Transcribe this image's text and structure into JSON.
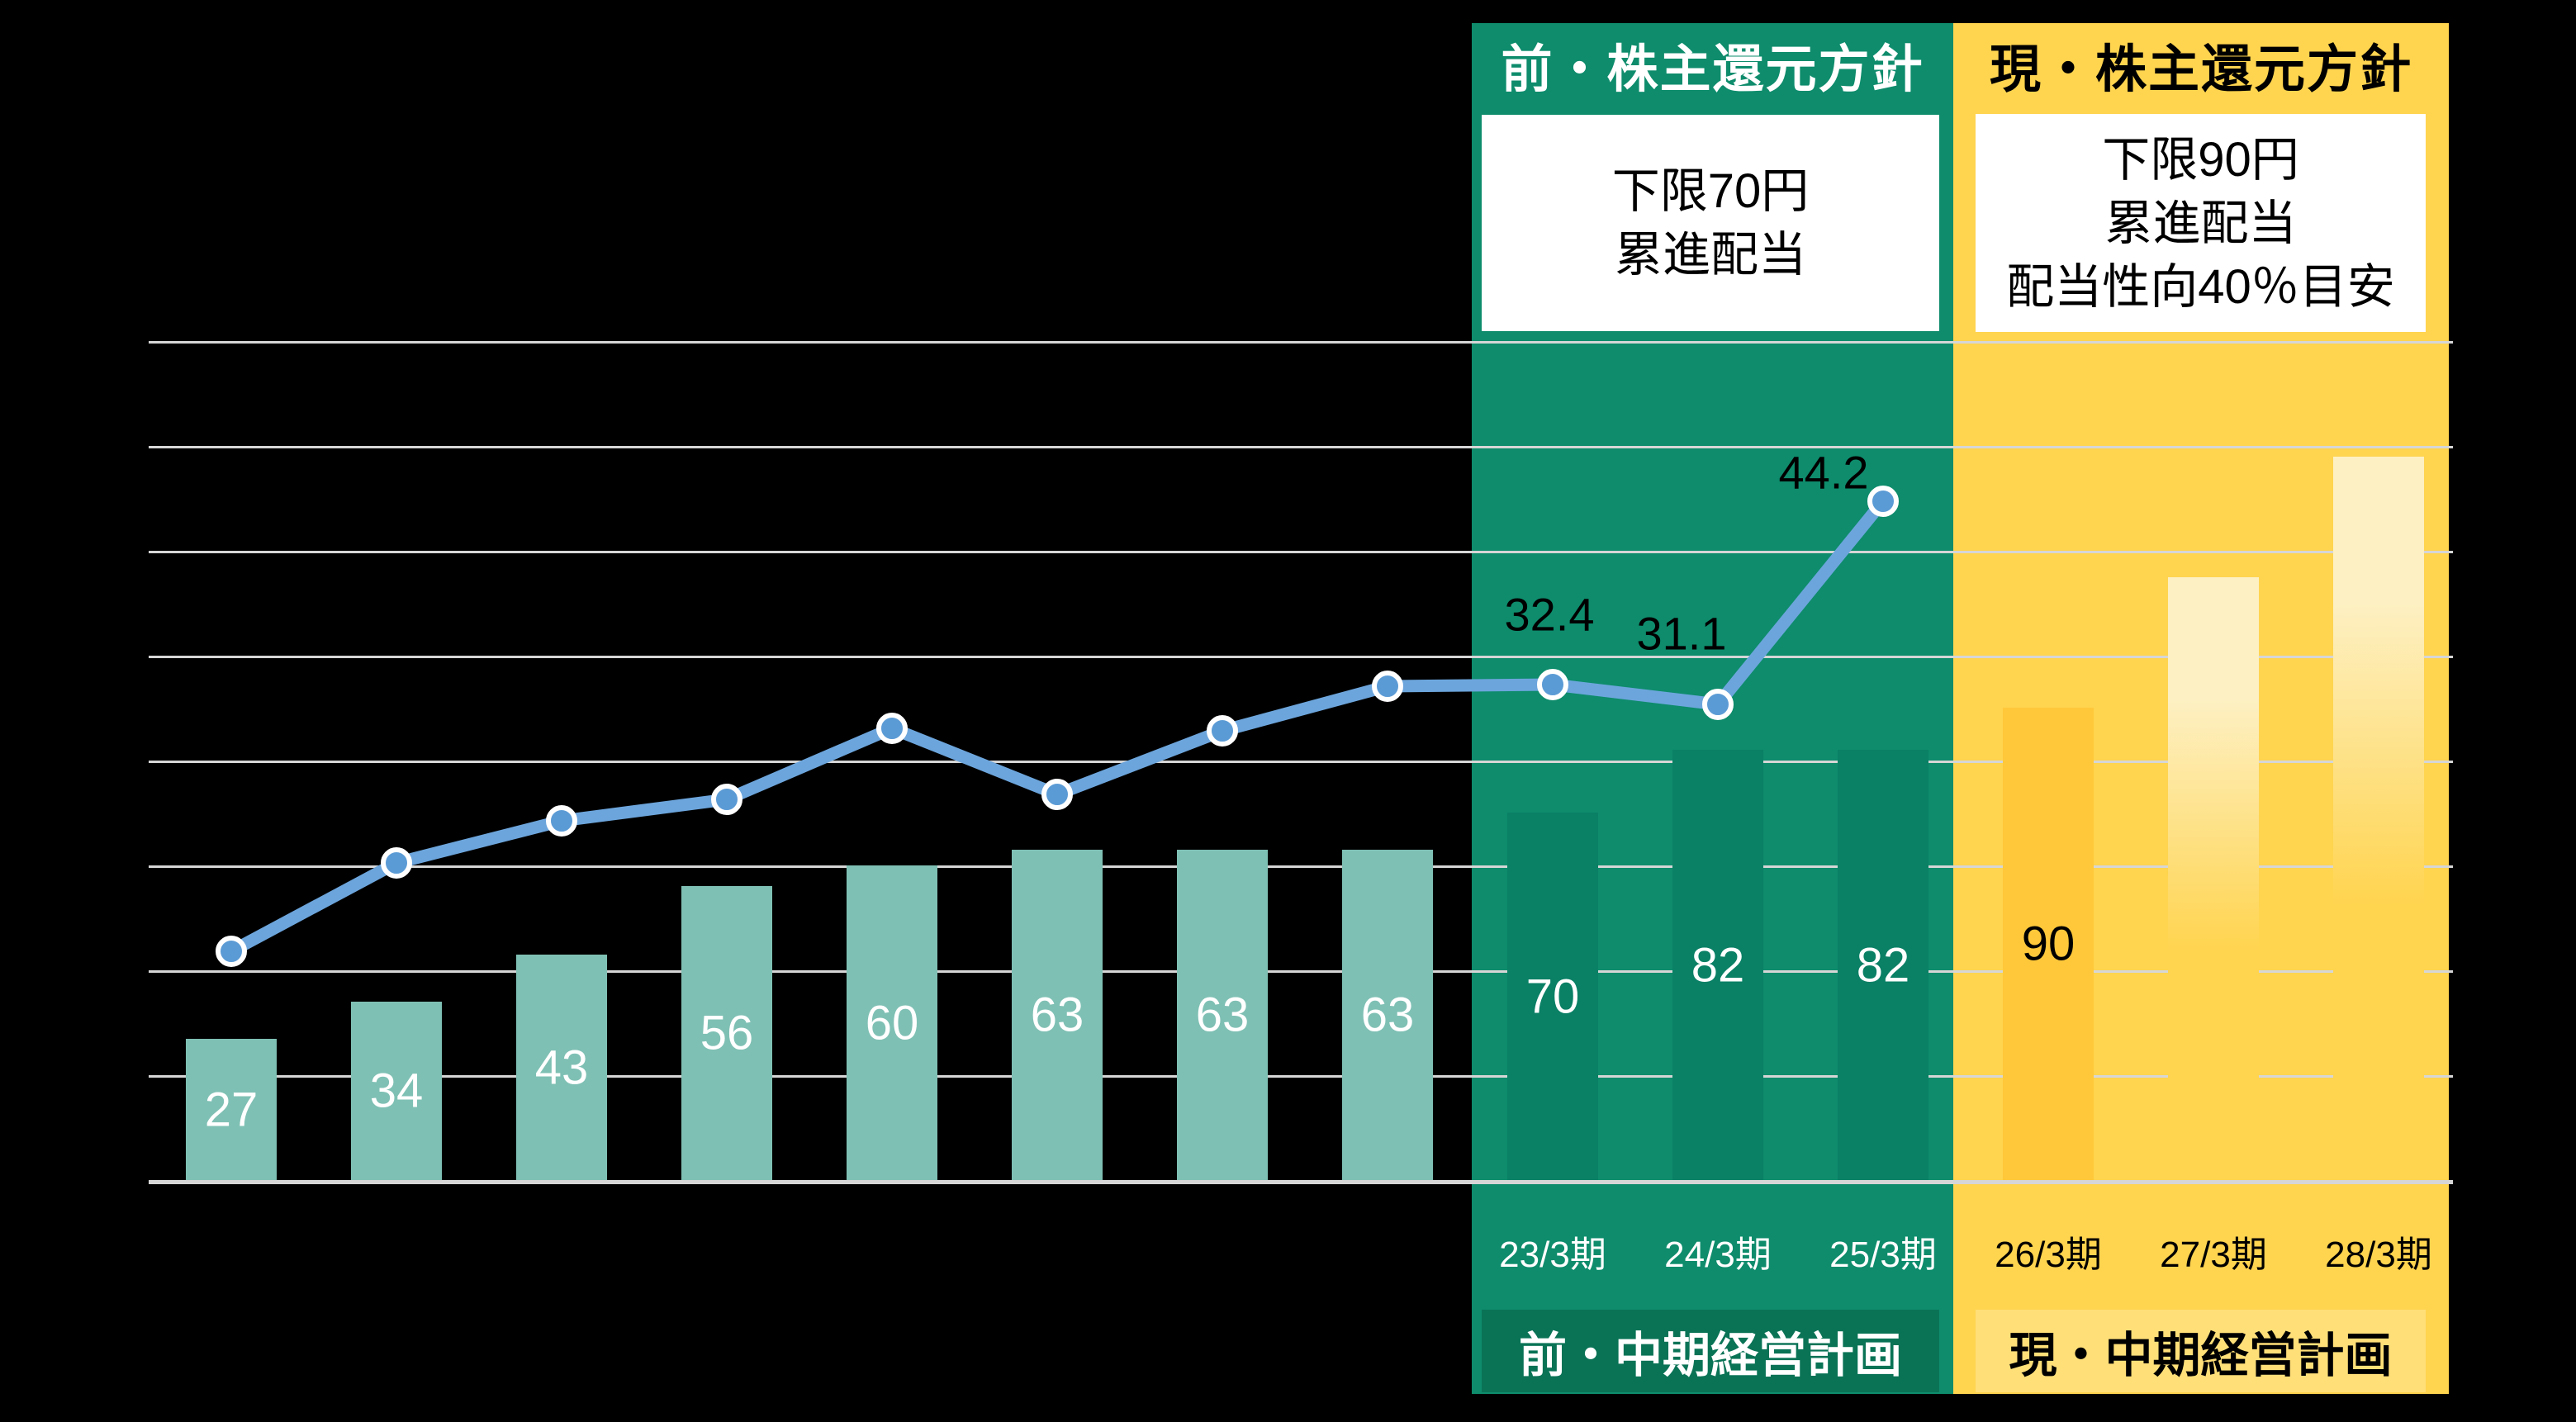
{
  "panels": {
    "prev": {
      "header": "前・株主還元方針",
      "box_lines": [
        "下限70円",
        "累進配当"
      ],
      "footer": "前・中期経営計画"
    },
    "current": {
      "header": "現・株主還元方針",
      "box_lines": [
        "下限90円",
        "累進配当",
        "配当性向40％目安"
      ],
      "footer": "現・中期経営計画"
    }
  },
  "chart_data": {
    "type": "combo",
    "categories": [
      "",
      "",
      "",
      "",
      "",
      "",
      "",
      "",
      "23/3期",
      "24/3期",
      "25/3期",
      "26/3期",
      "27/3期",
      "28/3期"
    ],
    "series": [
      {
        "name": "dividend-bars",
        "type": "bar",
        "values": [
          27,
          34,
          43,
          56,
          60,
          63,
          63,
          63,
          70,
          82,
          82,
          90,
          115,
          138
        ],
        "data_labels": [
          "27",
          "34",
          "43",
          "56",
          "60",
          "63",
          "63",
          "63",
          "70",
          "82",
          "82",
          "90",
          "",
          ""
        ],
        "segments": [
          "teal",
          "teal",
          "teal",
          "teal",
          "teal",
          "teal",
          "teal",
          "teal",
          "green",
          "green",
          "green",
          "gold",
          "forecast",
          "forecast"
        ]
      },
      {
        "name": "payout-ratio-line",
        "type": "line",
        "values": [
          15.2,
          20.9,
          23.6,
          25.0,
          29.6,
          25.3,
          29.4,
          32.3,
          32.4,
          31.1,
          44.2
        ],
        "data_labels": [
          "",
          "",
          "",
          "",
          "",
          "",
          "",
          "",
          "32.4",
          "31.1",
          "44.2"
        ]
      }
    ],
    "ylim": [
      0,
      160
    ],
    "gridline_step": 20,
    "grid": "on",
    "title": "",
    "xlabel": "",
    "ylabel": ""
  },
  "colors": {
    "band_green": "#0E8C6C",
    "bar_green": "#0A8065",
    "footbox_green": "#0A7356",
    "band_yellow": "#FFD44F",
    "bar_gold": "#FFC83A",
    "footbox_yellow": "#FFDF78",
    "forecast_cream": "#FDF0C3",
    "bar_teal": "#7FC0B4",
    "line_blue": "#6CA5DC",
    "marker_blue": "#5B9BD5",
    "gridline": "#D6D6D6",
    "background": "#000000"
  }
}
